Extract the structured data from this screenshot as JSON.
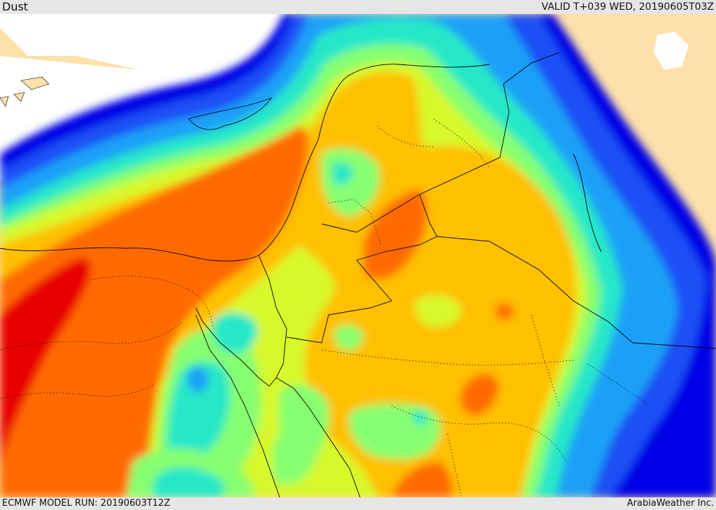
{
  "header": {
    "title": "Dust",
    "valid": "VALID T+039 WED, 20190605T03Z"
  },
  "footer": {
    "model_run": "ECMWF MODEL RUN: 20190603T12Z",
    "credit": "ArabiaWeather Inc."
  },
  "colors": {
    "land": "#fde0aa",
    "sea": "#ffffff",
    "levels": [
      "#0000e6",
      "#1a50f5",
      "#1fa0f7",
      "#27e8c8",
      "#86ff70",
      "#d7f82b",
      "#ffc000",
      "#ff6a00",
      "#e80000"
    ]
  }
}
